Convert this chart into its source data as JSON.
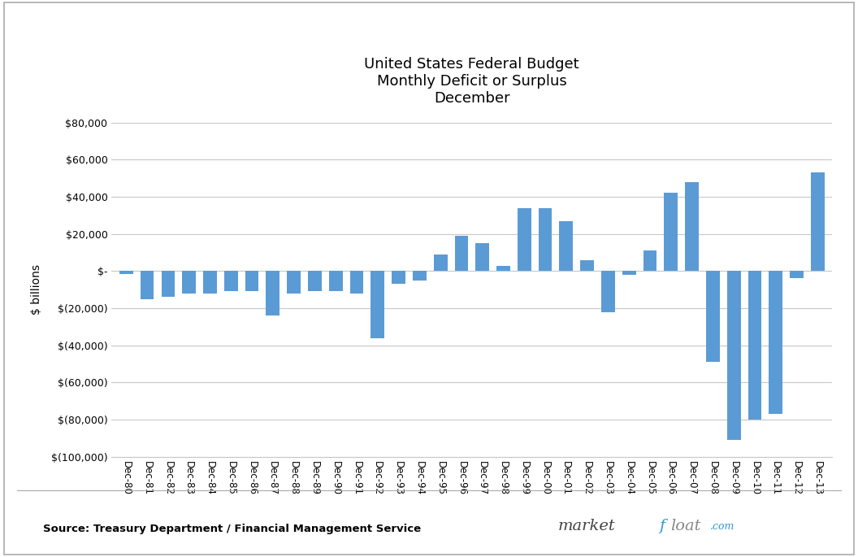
{
  "title": "United States Federal Budget\nMonthly Deficit or Surplus\nDecember",
  "ylabel": "$ billions",
  "source_text": "Source: Treasury Department / Financial Management Service",
  "bar_color": "#5B9BD5",
  "background_color": "#ffffff",
  "border_color": "#AAAAAA",
  "categories": [
    "Dec-80",
    "Dec-81",
    "Dec-82",
    "Dec-83",
    "Dec-84",
    "Dec-85",
    "Dec-86",
    "Dec-87",
    "Dec-88",
    "Dec-89",
    "Dec-90",
    "Dec-91",
    "Dec-92",
    "Dec-93",
    "Dec-94",
    "Dec-95",
    "Dec-96",
    "Dec-97",
    "Dec-98",
    "Dec-99",
    "Dec-00",
    "Dec-01",
    "Dec-02",
    "Dec-03",
    "Dec-04",
    "Dec-05",
    "Dec-06",
    "Dec-07",
    "Dec-08",
    "Dec-09",
    "Dec-10",
    "Dec-11",
    "Dec-12",
    "Dec-13"
  ],
  "values": [
    -1500,
    -15000,
    -14000,
    -12000,
    -12000,
    -11000,
    -11000,
    -24000,
    -12000,
    -11000,
    -11000,
    -12000,
    -36000,
    -7000,
    -5000,
    9000,
    19000,
    15000,
    3000,
    34000,
    34000,
    27000,
    6000,
    -22000,
    -2000,
    11000,
    42000,
    48000,
    -49000,
    -91000,
    -80000,
    -77000,
    -4000,
    53000
  ],
  "ylim": [
    -100000,
    80000
  ],
  "yticks": [
    -100000,
    -80000,
    -60000,
    -40000,
    -20000,
    0,
    20000,
    40000,
    60000,
    80000
  ],
  "ytick_labels": [
    "$(100,000)",
    "$(80,000)",
    "$(60,000)",
    "$(40,000)",
    "$(20,000)",
    "$-",
    "$20,000",
    "$40,000",
    "$60,000",
    "$80,000"
  ],
  "grid_color": "#C8C8C8",
  "logo_market_color": "#444444",
  "logo_f_color": "#3399CC",
  "logo_loat_color": "#888888",
  "logo_com_color": "#3399CC"
}
